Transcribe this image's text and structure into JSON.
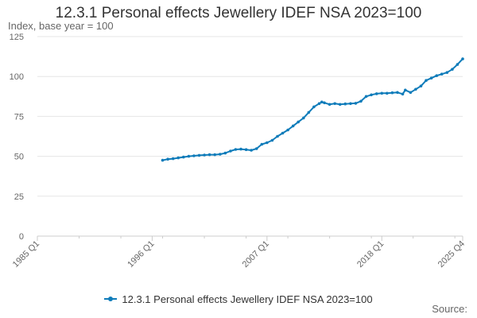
{
  "chart_data": {
    "type": "line",
    "title": "12.3.1 Personal effects Jewellery IDEF NSA 2023=100",
    "ylabel": "Index, base year = 100",
    "xlabel": "",
    "y_ticks": [
      "0",
      "25",
      "50",
      "75",
      "100",
      "125"
    ],
    "y_range": [
      0,
      125
    ],
    "x_ticks": [
      "1985 Q1",
      "1996 Q1",
      "2007 Q1",
      "2018 Q1",
      "2025 Q4"
    ],
    "x_range": [
      "1985 Q1",
      "2025 Q4"
    ],
    "grid": "horizontal",
    "legend_position": "bottom",
    "series": [
      {
        "name": "12.3.1 Personal effects Jewellery IDEF NSA 2023=100",
        "color": "#0f7cba",
        "points": [
          [
            "1997 Q1",
            47.5
          ],
          [
            "1997 Q3",
            48.2
          ],
          [
            "1998 Q1",
            48.5
          ],
          [
            "1998 Q3",
            49.0
          ],
          [
            "1999 Q1",
            49.5
          ],
          [
            "1999 Q3",
            50.0
          ],
          [
            "2000 Q1",
            50.3
          ],
          [
            "2000 Q3",
            50.6
          ],
          [
            "2001 Q1",
            50.8
          ],
          [
            "2001 Q3",
            51.0
          ],
          [
            "2002 Q1",
            51.0
          ],
          [
            "2002 Q3",
            51.3
          ],
          [
            "2003 Q1",
            52.0
          ],
          [
            "2003 Q3",
            53.3
          ],
          [
            "2004 Q1",
            54.3
          ],
          [
            "2004 Q3",
            54.5
          ],
          [
            "2005 Q1",
            54.2
          ],
          [
            "2005 Q3",
            53.8
          ],
          [
            "2006 Q1",
            54.8
          ],
          [
            "2006 Q3",
            57.5
          ],
          [
            "2007 Q1",
            58.5
          ],
          [
            "2007 Q3",
            60.0
          ],
          [
            "2008 Q1",
            62.5
          ],
          [
            "2008 Q3",
            64.5
          ],
          [
            "2009 Q1",
            66.5
          ],
          [
            "2009 Q3",
            69.0
          ],
          [
            "2010 Q1",
            71.5
          ],
          [
            "2010 Q3",
            74.0
          ],
          [
            "2011 Q1",
            77.5
          ],
          [
            "2011 Q3",
            81.0
          ],
          [
            "2012 Q1",
            83.0
          ],
          [
            "2012 Q2",
            84.0
          ],
          [
            "2012 Q3",
            83.5
          ],
          [
            "2013 Q1",
            82.5
          ],
          [
            "2013 Q3",
            83.0
          ],
          [
            "2014 Q1",
            82.5
          ],
          [
            "2014 Q3",
            82.8
          ],
          [
            "2015 Q1",
            83.0
          ],
          [
            "2015 Q3",
            83.2
          ],
          [
            "2016 Q1",
            84.5
          ],
          [
            "2016 Q3",
            87.5
          ],
          [
            "2017 Q1",
            88.5
          ],
          [
            "2017 Q3",
            89.2
          ],
          [
            "2018 Q1",
            89.5
          ],
          [
            "2018 Q3",
            89.5
          ],
          [
            "2019 Q1",
            89.8
          ],
          [
            "2019 Q3",
            90.0
          ],
          [
            "2020 Q1",
            89.0
          ],
          [
            "2020 Q2",
            91.5
          ],
          [
            "2020 Q4",
            90.0
          ],
          [
            "2021 Q2",
            92.0
          ],
          [
            "2021 Q4",
            94.0
          ],
          [
            "2022 Q2",
            97.5
          ],
          [
            "2022 Q4",
            99.0
          ],
          [
            "2023 Q2",
            100.5
          ],
          [
            "2023 Q4",
            101.5
          ],
          [
            "2024 Q2",
            102.5
          ],
          [
            "2024 Q4",
            104.5
          ],
          [
            "2025 Q2",
            107.5
          ],
          [
            "2025 Q4",
            111.0
          ]
        ]
      }
    ]
  },
  "legend": {
    "label": "12.3.1 Personal effects Jewellery IDEF NSA 2023=100"
  },
  "footer": {
    "source_label": "Source:"
  },
  "colors": {
    "series": "#0f7cba",
    "grid": "#e6e6e6",
    "axis": "#cccccc"
  }
}
